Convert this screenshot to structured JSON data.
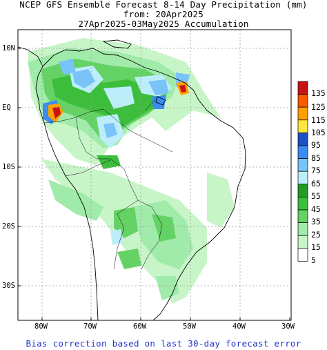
{
  "header": {
    "line1": "NCEP GFS Ensemble Forecast 8-14 Day Precipitation (mm)",
    "line2": "from: 20Apr2025",
    "line3": "27Apr2025-03May2025 Accumulation"
  },
  "axes": {
    "lat_labels": [
      "10N",
      "EQ",
      "10S",
      "20S",
      "30S"
    ],
    "lon_labels": [
      "80W",
      "70W",
      "60W",
      "50W",
      "40W",
      "30W"
    ]
  },
  "legend": {
    "levels": [
      "135",
      "125",
      "115",
      "105",
      "95",
      "85",
      "75",
      "65",
      "55",
      "45",
      "35",
      "25",
      "15",
      "5"
    ],
    "colors": [
      "#c81414",
      "#fa5a00",
      "#ffa000",
      "#ffe640",
      "#1e50c8",
      "#3c8cf0",
      "#78c3f8",
      "#bceefa",
      "#1e9e1e",
      "#3cbe3c",
      "#64d264",
      "#a0ebaa",
      "#c8f5c8",
      "#ffffff"
    ]
  },
  "footer": {
    "note": "Bias correction based on last 30-day forecast error"
  }
}
